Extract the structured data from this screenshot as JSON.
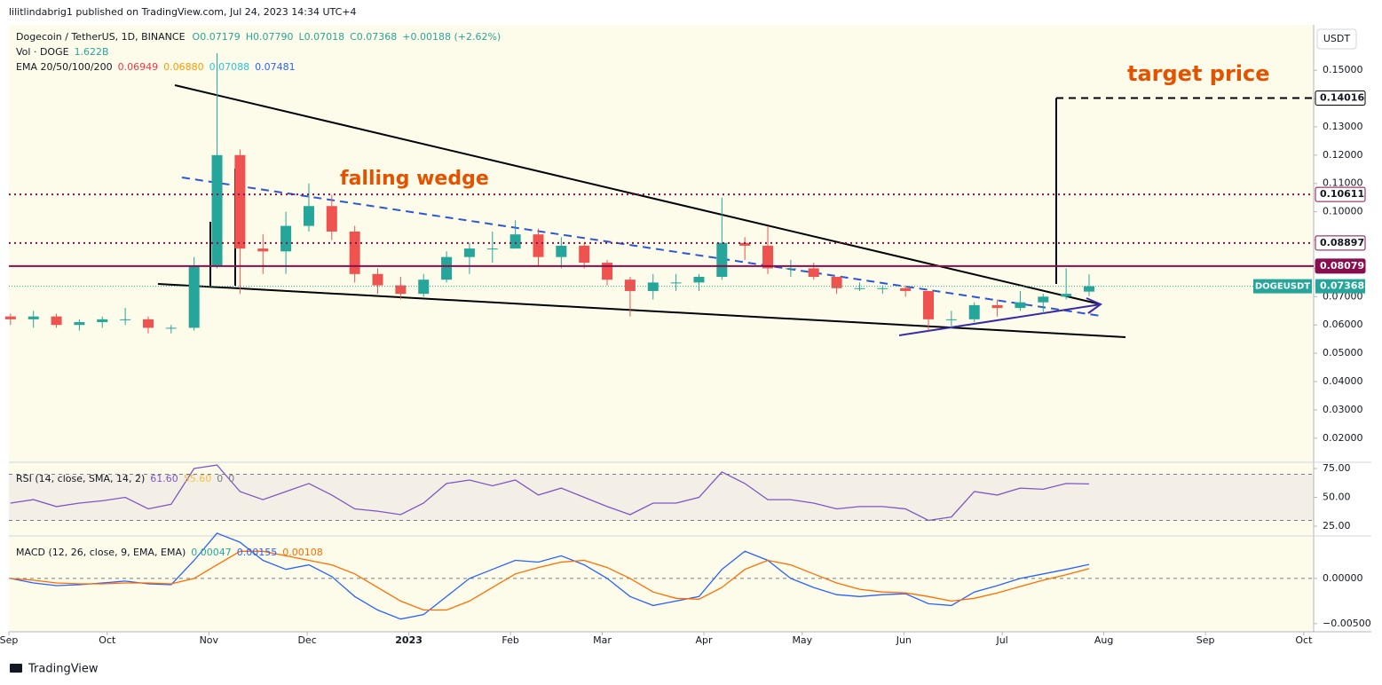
{
  "header": {
    "published": "lilitlindabrig1 published on TradingView.com, Jul 24, 2023 14:34 UTC+4",
    "symbol": "Dogecoin / TetherUS, 1D, BINANCE",
    "ohlc": [
      "O0.07179",
      "H0.07790",
      "L0.07018",
      "C0.07368",
      "+0.00188 (+2.62%)"
    ],
    "volume": {
      "label": "Vol · DOGE",
      "value": "1.622B"
    },
    "ema": {
      "label": "EMA 20/50/100/200",
      "values": [
        "0.06949",
        "0.06880",
        "0.07088",
        "0.07481"
      ],
      "colors": [
        "#f23645",
        "#ff9800",
        "#26c6da",
        "#2962ff"
      ]
    }
  },
  "chart_data": [
    {
      "type": "candlestick",
      "currency": "USDT",
      "xlim": [
        "2022-09-01",
        "2023-10-04"
      ],
      "xticks": [
        {
          "value": "2022-09-01",
          "label": "Sep"
        },
        {
          "value": "2022-10-01",
          "label": "Oct"
        },
        {
          "value": "2022-11-01",
          "label": "Nov"
        },
        {
          "value": "2022-12-01",
          "label": "Dec"
        },
        {
          "value": "2023-01-01",
          "label": "2023"
        },
        {
          "value": "2023-02-01",
          "label": "Feb"
        },
        {
          "value": "2023-03-01",
          "label": "Mar"
        },
        {
          "value": "2023-04-01",
          "label": "Apr"
        },
        {
          "value": "2023-05-01",
          "label": "May"
        },
        {
          "value": "2023-06-01",
          "label": "Jun"
        },
        {
          "value": "2023-07-01",
          "label": "Jul"
        },
        {
          "value": "2023-08-01",
          "label": "Aug"
        },
        {
          "value": "2023-09-01",
          "label": "Sep"
        },
        {
          "value": "2023-10-01",
          "label": "Oct"
        }
      ],
      "ylim": [
        0.0118,
        0.1654
      ],
      "yticks": [
        {
          "value": 0.15,
          "label": "0.15000"
        },
        {
          "value": 0.14,
          "label": "0.14000"
        },
        {
          "value": 0.13,
          "label": "0.13000"
        },
        {
          "value": 0.12,
          "label": "0.12000"
        },
        {
          "value": 0.11,
          "label": "0.11000"
        },
        {
          "value": 0.1,
          "label": "0.10000"
        },
        {
          "value": 0.09,
          "label": "0.09000"
        },
        {
          "value": 0.08,
          "label": "0.08000"
        },
        {
          "value": 0.07,
          "label": "0.07000"
        },
        {
          "value": 0.06,
          "label": "0.06000"
        },
        {
          "value": 0.05,
          "label": "0.05000"
        },
        {
          "value": 0.04,
          "label": "0.04000"
        },
        {
          "value": 0.03,
          "label": "0.03000"
        },
        {
          "value": 0.02,
          "label": "0.02000"
        }
      ],
      "up_color": "#26a69a",
      "down_color": "#ef5350",
      "candles": [
        {
          "x": "2022-08-29",
          "open": 0.063,
          "high": 0.064,
          "low": 0.06,
          "close": 0.062
        },
        {
          "x": "2022-09-05",
          "open": 0.062,
          "high": 0.065,
          "low": 0.059,
          "close": 0.063
        },
        {
          "x": "2022-09-12",
          "open": 0.063,
          "high": 0.064,
          "low": 0.059,
          "close": 0.06
        },
        {
          "x": "2022-09-19",
          "open": 0.06,
          "high": 0.062,
          "low": 0.058,
          "close": 0.061
        },
        {
          "x": "2022-09-26",
          "open": 0.061,
          "high": 0.063,
          "low": 0.059,
          "close": 0.062
        },
        {
          "x": "2022-10-03",
          "open": 0.062,
          "high": 0.066,
          "low": 0.06,
          "close": 0.062
        },
        {
          "x": "2022-10-10",
          "open": 0.062,
          "high": 0.063,
          "low": 0.057,
          "close": 0.059
        },
        {
          "x": "2022-10-17",
          "open": 0.059,
          "high": 0.06,
          "low": 0.057,
          "close": 0.059
        },
        {
          "x": "2022-10-24",
          "open": 0.059,
          "high": 0.084,
          "low": 0.058,
          "close": 0.081
        },
        {
          "x": "2022-10-31",
          "open": 0.081,
          "high": 0.156,
          "low": 0.08,
          "close": 0.12
        },
        {
          "x": "2022-11-07",
          "open": 0.12,
          "high": 0.122,
          "low": 0.071,
          "close": 0.087
        },
        {
          "x": "2022-11-14",
          "open": 0.087,
          "high": 0.092,
          "low": 0.078,
          "close": 0.086
        },
        {
          "x": "2022-11-21",
          "open": 0.086,
          "high": 0.1,
          "low": 0.078,
          "close": 0.095
        },
        {
          "x": "2022-11-28",
          "open": 0.095,
          "high": 0.11,
          "low": 0.093,
          "close": 0.102
        },
        {
          "x": "2022-12-05",
          "open": 0.102,
          "high": 0.106,
          "low": 0.09,
          "close": 0.093
        },
        {
          "x": "2022-12-12",
          "open": 0.093,
          "high": 0.095,
          "low": 0.075,
          "close": 0.078
        },
        {
          "x": "2022-12-19",
          "open": 0.078,
          "high": 0.08,
          "low": 0.071,
          "close": 0.074
        },
        {
          "x": "2022-12-26",
          "open": 0.074,
          "high": 0.077,
          "low": 0.069,
          "close": 0.071
        },
        {
          "x": "2023-01-02",
          "open": 0.071,
          "high": 0.078,
          "low": 0.07,
          "close": 0.076
        },
        {
          "x": "2023-01-09",
          "open": 0.076,
          "high": 0.086,
          "low": 0.075,
          "close": 0.084
        },
        {
          "x": "2023-01-16",
          "open": 0.084,
          "high": 0.089,
          "low": 0.078,
          "close": 0.087
        },
        {
          "x": "2023-01-23",
          "open": 0.087,
          "high": 0.093,
          "low": 0.082,
          "close": 0.087
        },
        {
          "x": "2023-01-30",
          "open": 0.087,
          "high": 0.097,
          "low": 0.087,
          "close": 0.092
        },
        {
          "x": "2023-02-06",
          "open": 0.092,
          "high": 0.094,
          "low": 0.081,
          "close": 0.084
        },
        {
          "x": "2023-02-13",
          "open": 0.084,
          "high": 0.091,
          "low": 0.08,
          "close": 0.088
        },
        {
          "x": "2023-02-20",
          "open": 0.088,
          "high": 0.089,
          "low": 0.08,
          "close": 0.082
        },
        {
          "x": "2023-02-27",
          "open": 0.082,
          "high": 0.083,
          "low": 0.074,
          "close": 0.076
        },
        {
          "x": "2023-03-06",
          "open": 0.076,
          "high": 0.077,
          "low": 0.063,
          "close": 0.072
        },
        {
          "x": "2023-03-13",
          "open": 0.072,
          "high": 0.078,
          "low": 0.069,
          "close": 0.075
        },
        {
          "x": "2023-03-20",
          "open": 0.075,
          "high": 0.078,
          "low": 0.072,
          "close": 0.075
        },
        {
          "x": "2023-03-27",
          "open": 0.075,
          "high": 0.078,
          "low": 0.072,
          "close": 0.077
        },
        {
          "x": "2023-04-03",
          "open": 0.077,
          "high": 0.105,
          "low": 0.076,
          "close": 0.089
        },
        {
          "x": "2023-04-10",
          "open": 0.089,
          "high": 0.091,
          "low": 0.083,
          "close": 0.088
        },
        {
          "x": "2023-04-17",
          "open": 0.088,
          "high": 0.095,
          "low": 0.078,
          "close": 0.08
        },
        {
          "x": "2023-04-24",
          "open": 0.08,
          "high": 0.083,
          "low": 0.077,
          "close": 0.08
        },
        {
          "x": "2023-05-01",
          "open": 0.08,
          "high": 0.082,
          "low": 0.076,
          "close": 0.077
        },
        {
          "x": "2023-05-08",
          "open": 0.077,
          "high": 0.077,
          "low": 0.071,
          "close": 0.073
        },
        {
          "x": "2023-05-15",
          "open": 0.073,
          "high": 0.075,
          "low": 0.072,
          "close": 0.073
        },
        {
          "x": "2023-05-22",
          "open": 0.073,
          "high": 0.074,
          "low": 0.071,
          "close": 0.073
        },
        {
          "x": "2023-05-29",
          "open": 0.073,
          "high": 0.074,
          "low": 0.07,
          "close": 0.072
        },
        {
          "x": "2023-06-05",
          "open": 0.072,
          "high": 0.072,
          "low": 0.058,
          "close": 0.062
        },
        {
          "x": "2023-06-12",
          "open": 0.062,
          "high": 0.065,
          "low": 0.059,
          "close": 0.062
        },
        {
          "x": "2023-06-19",
          "open": 0.062,
          "high": 0.068,
          "low": 0.061,
          "close": 0.067
        },
        {
          "x": "2023-06-26",
          "open": 0.067,
          "high": 0.069,
          "low": 0.063,
          "close": 0.066
        },
        {
          "x": "2023-07-03",
          "open": 0.066,
          "high": 0.072,
          "low": 0.065,
          "close": 0.068
        },
        {
          "x": "2023-07-10",
          "open": 0.068,
          "high": 0.071,
          "low": 0.064,
          "close": 0.07
        },
        {
          "x": "2023-07-17",
          "open": 0.07,
          "high": 0.08,
          "low": 0.069,
          "close": 0.071
        },
        {
          "x": "2023-07-24",
          "open": 0.07179,
          "high": 0.0779,
          "low": 0.07018,
          "close": 0.07368
        }
      ],
      "levels": [
        {
          "value": 0.14016,
          "color": "#000000",
          "style": "dashed"
        },
        {
          "value": 0.10611,
          "color": "#880e4f",
          "style": "dotted"
        },
        {
          "value": 0.08897,
          "color": "#880e4f",
          "style": "dotted"
        },
        {
          "value": 0.08079,
          "color": "#880e4f",
          "style": "solid"
        }
      ],
      "last": {
        "label": "DOGEUSDT",
        "value": 0.07368,
        "color": "#26a69a"
      },
      "annotations": [
        "target price",
        "falling wedge"
      ]
    },
    {
      "type": "line",
      "title": "RSI (14, close, SMA, 14, 2)",
      "legend_values": [
        "61.60",
        "55.60",
        "0",
        "0"
      ],
      "legend_colors": [
        "#7e57c2",
        "#f5c242",
        "#787b86",
        "#787b86"
      ],
      "ylim": [
        17.3,
        79.6
      ],
      "yticks": [
        {
          "value": 75,
          "label": "75.00"
        },
        {
          "value": 50,
          "label": "50.00"
        },
        {
          "value": 25,
          "label": "25.00"
        }
      ],
      "band": [
        30,
        70
      ],
      "series": [
        {
          "color": "#7e57c2",
          "values": [
            45,
            48,
            42,
            45,
            47,
            50,
            40,
            44,
            75,
            78,
            55,
            48,
            55,
            62,
            52,
            40,
            38,
            35,
            45,
            62,
            65,
            60,
            65,
            52,
            58,
            50,
            42,
            35,
            45,
            45,
            50,
            72,
            62,
            48,
            48,
            45,
            40,
            42,
            42,
            40,
            30,
            33,
            55,
            52,
            58,
            57,
            62,
            61.6
          ]
        }
      ]
    },
    {
      "type": "line",
      "title": "MACD (12, 26, close, 9, EMA, EMA)",
      "legend_values": [
        "0.00047",
        "0.00155",
        "0.00108"
      ],
      "legend_colors": [
        "#26a69a",
        "#2962ff",
        "#ff6d00"
      ],
      "ylim": [
        -0.0059,
        0.0046
      ],
      "yticks": [
        {
          "value": 0,
          "label": "0.00000"
        },
        {
          "value": -0.005,
          "label": "−0.00500"
        }
      ],
      "series": [
        {
          "color": "#2962ff",
          "values": [
            0,
            -0.0005,
            -0.0008,
            -0.0007,
            -0.0005,
            -0.0003,
            -0.0006,
            -0.0007,
            0.002,
            0.005,
            0.004,
            0.002,
            0.001,
            0.0015,
            0.0002,
            -0.002,
            -0.0035,
            -0.0045,
            -0.004,
            -0.002,
            0,
            0.001,
            0.002,
            0.0018,
            0.0025,
            0.0015,
            0,
            -0.002,
            -0.003,
            -0.0025,
            -0.002,
            0.001,
            0.003,
            0.002,
            0,
            -0.001,
            -0.0018,
            -0.002,
            -0.0018,
            -0.0017,
            -0.0028,
            -0.003,
            -0.0015,
            -0.0008,
            0,
            0.0005,
            0.001,
            0.00155
          ]
        },
        {
          "color": "#ff6d00",
          "values": [
            0,
            -0.0002,
            -0.0005,
            -0.0006,
            -0.0006,
            -0.0005,
            -0.0005,
            -0.0006,
            0,
            0.0015,
            0.003,
            0.003,
            0.0025,
            0.002,
            0.0015,
            0.0005,
            -0.001,
            -0.0025,
            -0.0035,
            -0.0035,
            -0.0025,
            -0.001,
            0.0005,
            0.0012,
            0.0018,
            0.002,
            0.0012,
            0,
            -0.0015,
            -0.0022,
            -0.0023,
            -0.001,
            0.001,
            0.002,
            0.0015,
            0.0005,
            -0.0005,
            -0.0012,
            -0.0015,
            -0.0016,
            -0.002,
            -0.0025,
            -0.0022,
            -0.0016,
            -0.0009,
            -0.0002,
            0.0004,
            0.00108
          ]
        }
      ]
    }
  ],
  "footer": "TradingView"
}
